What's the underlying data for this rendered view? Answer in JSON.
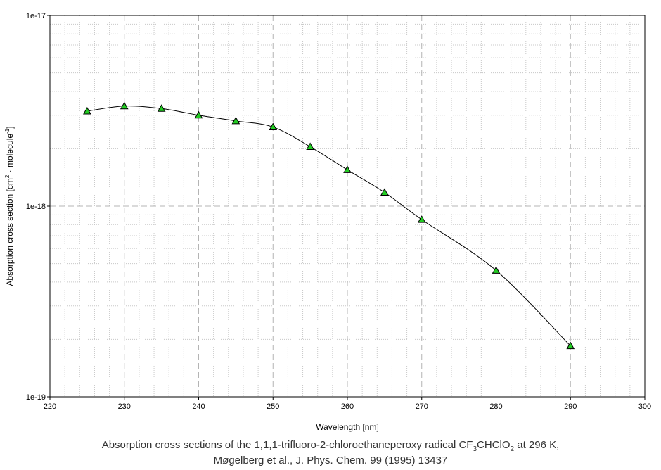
{
  "chart_data": {
    "type": "line",
    "xlabel": "Wavelength [nm]",
    "ylabel_prefix": "Absorption cross section [cm",
    "ylabel_sup1": "2",
    "ylabel_mid": " · molecule",
    "ylabel_sup2": "-1",
    "ylabel_suffix": "]",
    "xlim": [
      220,
      300
    ],
    "ylim": [
      1e-19,
      1e-17
    ],
    "yscale": "log",
    "x_ticks": [
      "220",
      "230",
      "240",
      "250",
      "260",
      "270",
      "280",
      "290",
      "300"
    ],
    "y_ticks": [
      "1e-19",
      "1e-18",
      "1e-17"
    ],
    "grid": true,
    "series": [
      {
        "marker": "triangle",
        "marker_color": "#22cc22",
        "line_color": "#000000",
        "x": [
          225,
          230,
          235,
          240,
          245,
          250,
          255,
          260,
          265,
          270,
          280,
          290
        ],
        "y": [
          3.15e-18,
          3.35e-18,
          3.25e-18,
          3e-18,
          2.8e-18,
          2.6e-18,
          2.05e-18,
          1.55e-18,
          1.18e-18,
          8.5e-19,
          4.6e-19,
          1.85e-19
        ]
      }
    ]
  },
  "caption": {
    "line1_prefix": "Absorption cross sections of the 1,1,1-trifluoro-2-chloroethaneperoxy radical CF",
    "line1_sub1": "3",
    "line1_mid": "CHClO",
    "line1_sub2": "2",
    "line1_suffix": " at 296 K,",
    "line2": "Møgelberg et al., J. Phys. Chem. 99 (1995) 13437"
  }
}
